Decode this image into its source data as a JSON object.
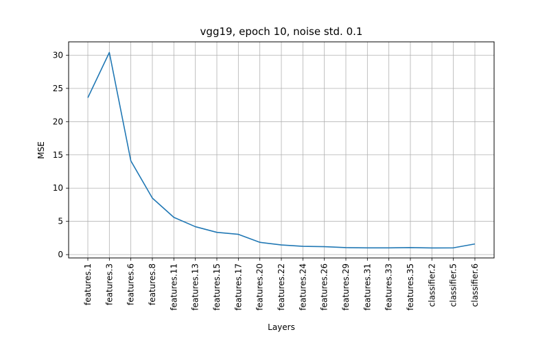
{
  "chart_data": {
    "type": "line",
    "title": "vgg19, epoch 10, noise std. 0.1",
    "xlabel": "Layers",
    "ylabel": "MSE",
    "categories": [
      "features.1",
      "features.3",
      "features.6",
      "features.8",
      "features.11",
      "features.13",
      "features.15",
      "features.17",
      "features.20",
      "features.22",
      "features.24",
      "features.26",
      "features.29",
      "features.31",
      "features.33",
      "features.35",
      "classifier.2",
      "classifier.5",
      "classifier.6"
    ],
    "values": [
      23.6,
      30.4,
      14.1,
      8.5,
      5.6,
      4.2,
      3.35,
      3.05,
      1.85,
      1.45,
      1.25,
      1.2,
      1.05,
      1.02,
      1.02,
      1.05,
      1.0,
      1.02,
      1.6
    ],
    "yticks": [
      0,
      5,
      10,
      15,
      20,
      25,
      30
    ],
    "ylim": [
      -0.5,
      32
    ],
    "grid": true,
    "line_color": "#1f77b4",
    "grid_color": "#b0b0b0"
  }
}
